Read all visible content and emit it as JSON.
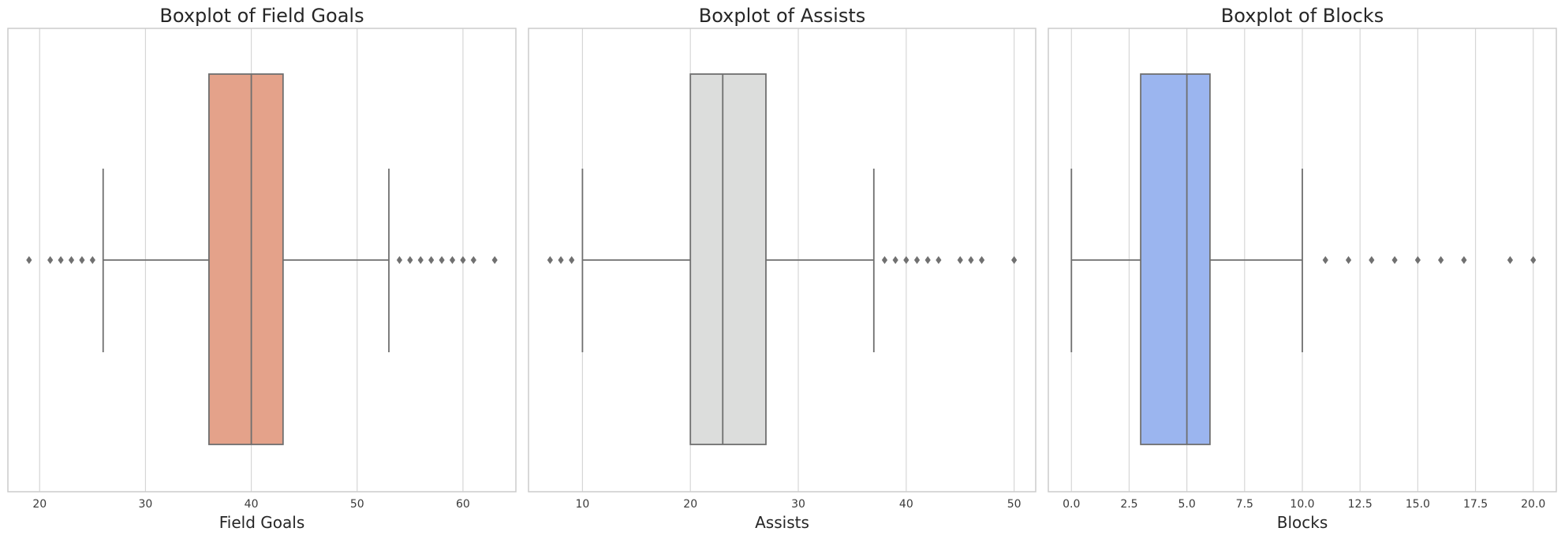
{
  "chart_data": [
    {
      "type": "boxplot",
      "title": "Boxplot of Field Goals",
      "xlabel": "Field Goals",
      "ylabel": "",
      "xlim": [
        17,
        65
      ],
      "ticks": [
        20,
        30,
        40,
        50,
        60
      ],
      "box_color": "#e4a28a",
      "stats": {
        "whislo": 26,
        "q1": 36,
        "median": 40,
        "q3": 43,
        "whishi": 53
      },
      "outliers": [
        19,
        21,
        22,
        23,
        24,
        25,
        54,
        55,
        56,
        57,
        58,
        59,
        60,
        61,
        63
      ],
      "grid": true
    },
    {
      "type": "boxplot",
      "title": "Boxplot of Assists",
      "xlabel": "Assists",
      "ylabel": "",
      "xlim": [
        5,
        52
      ],
      "ticks": [
        10,
        20,
        30,
        40,
        50
      ],
      "box_color": "#dcdddc",
      "stats": {
        "whislo": 10,
        "q1": 20,
        "median": 23,
        "q3": 27,
        "whishi": 37
      },
      "outliers": [
        7,
        8,
        9,
        38,
        39,
        40,
        41,
        42,
        43,
        45,
        46,
        47,
        50
      ],
      "grid": true
    },
    {
      "type": "boxplot",
      "title": "Boxplot of Blocks",
      "xlabel": "Blocks",
      "ylabel": "",
      "xlim": [
        -1,
        21
      ],
      "ticks": [
        0.0,
        2.5,
        5.0,
        7.5,
        10.0,
        12.5,
        15.0,
        17.5,
        20.0
      ],
      "tick_labels": [
        "0.0",
        "2.5",
        "5.0",
        "7.5",
        "10.0",
        "12.5",
        "15.0",
        "17.5",
        "20.0"
      ],
      "box_color": "#9bb5ef",
      "stats": {
        "whislo": 0,
        "q1": 3,
        "median": 5,
        "q3": 6,
        "whishi": 10
      },
      "outliers": [
        11,
        12,
        13,
        14,
        15,
        16,
        17,
        19,
        20
      ],
      "grid": true
    }
  ],
  "colors": {
    "grid": "#d6d6d6",
    "frame": "#cccccc",
    "line": "#6f6f6f",
    "flier": "#707070"
  }
}
